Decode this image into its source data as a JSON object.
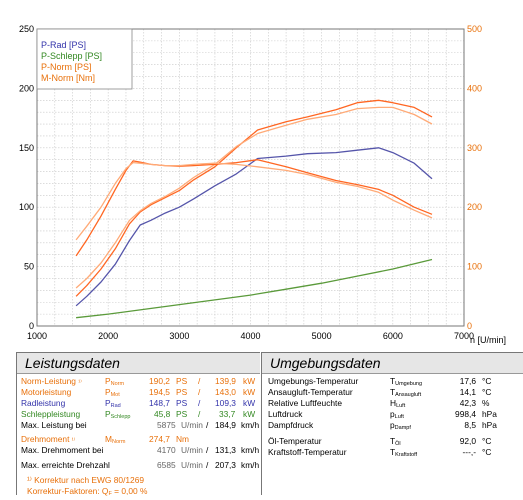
{
  "chart_data": {
    "type": "line",
    "xlabel": "n [U/min]",
    "xlim": [
      1000,
      7000
    ],
    "x_ticks": [
      1000,
      2000,
      3000,
      4000,
      5000,
      6000,
      7000
    ],
    "ylim_left": [
      0,
      250
    ],
    "y_ticks_left": [
      0,
      50,
      100,
      150,
      200,
      250
    ],
    "ylim_right": [
      0,
      500
    ],
    "y_ticks_right": [
      0,
      100,
      200,
      300,
      400,
      500
    ],
    "grid": true,
    "legend_position": "top-left",
    "legend": [
      "P-Rad [PS]",
      "P-Schlepp [PS]",
      "P-Norm [PS]",
      "M-Norm [Nm]"
    ],
    "series": [
      {
        "name": "P-Rad [PS]",
        "axis": "left",
        "color": "#5555aa",
        "x": [
          1550,
          1700,
          1900,
          2100,
          2300,
          2450,
          2600,
          2800,
          3000,
          3200,
          3500,
          3800,
          4100,
          4500,
          4800,
          5200,
          5500,
          5800,
          6000,
          6300,
          6550
        ],
        "y": [
          17,
          25,
          37,
          52,
          72,
          85,
          89,
          95,
          100,
          107,
          118,
          128,
          141,
          143,
          145,
          146,
          148,
          150,
          146,
          137,
          124
        ]
      },
      {
        "name": "P-Schlepp [PS]",
        "axis": "left",
        "color": "#5a9a3a",
        "x": [
          1550,
          2000,
          2500,
          3000,
          3500,
          4000,
          4500,
          5000,
          5500,
          6000,
          6550
        ],
        "y": [
          7,
          10,
          14,
          18,
          22,
          26,
          31,
          36,
          42,
          48,
          56
        ]
      },
      {
        "name": "P-Norm [PS]",
        "axis": "left",
        "color": "#ff6622",
        "x": [
          1550,
          1700,
          1900,
          2100,
          2300,
          2450,
          2600,
          2800,
          3000,
          3200,
          3500,
          3800,
          4100,
          4500,
          4800,
          5200,
          5500,
          5800,
          6000,
          6300,
          6550
        ],
        "y": [
          25,
          34,
          48,
          65,
          86,
          96,
          102,
          108,
          114,
          123,
          134,
          150,
          165,
          172,
          176,
          182,
          188,
          190,
          188,
          184,
          176
        ]
      },
      {
        "name": "P-Norm [PS]",
        "axis": "left",
        "color": "#ffaa77",
        "x": [
          1550,
          1700,
          1900,
          2100,
          2300,
          2450,
          2600,
          2800,
          3000,
          3200,
          3500,
          3800,
          4100,
          4500,
          4800,
          5200,
          5500,
          5800,
          6000,
          6300,
          6550
        ],
        "y": [
          32,
          40,
          53,
          70,
          89,
          97,
          103,
          109,
          116,
          125,
          136,
          151,
          162,
          169,
          174,
          178,
          183,
          184,
          184,
          178,
          170
        ]
      },
      {
        "name": "M-Norm [Nm]",
        "axis": "right",
        "color": "#ff6622",
        "x": [
          1550,
          1700,
          1900,
          2100,
          2250,
          2350,
          2450,
          2600,
          2800,
          3000,
          3200,
          3500,
          3800,
          4100,
          4500,
          4800,
          5200,
          5500,
          5800,
          6000,
          6300,
          6550
        ],
        "y": [
          118,
          145,
          185,
          230,
          262,
          278,
          276,
          272,
          270,
          269,
          270,
          272,
          275,
          280,
          268,
          258,
          245,
          238,
          230,
          220,
          200,
          188
        ]
      },
      {
        "name": "M-Norm [Nm]",
        "axis": "right",
        "color": "#ffaa77",
        "x": [
          1550,
          1700,
          1900,
          2100,
          2250,
          2350,
          2450,
          2600,
          2800,
          3000,
          3200,
          3500,
          3800,
          4100,
          4500,
          4800,
          5200,
          5500,
          5800,
          6000,
          6300,
          6550
        ],
        "y": [
          145,
          168,
          200,
          240,
          265,
          275,
          274,
          272,
          270,
          270,
          272,
          274,
          272,
          268,
          262,
          255,
          242,
          235,
          225,
          212,
          195,
          182
        ]
      }
    ]
  },
  "leistung": {
    "title": "Leistungsdaten",
    "norm": {
      "label": "Norm-Leistung",
      "mark": "¹⁾",
      "sym": "P",
      "sub": "Norm",
      "ps": "190,2",
      "ps_unit": "PS",
      "sep": "/",
      "kw": "139,9",
      "kw_unit": "kW"
    },
    "motor": {
      "label": "Motorleistung",
      "sym": "P",
      "sub": "Mot",
      "ps": "194,5",
      "ps_unit": "PS",
      "sep": "/",
      "kw": "143,0",
      "kw_unit": "kW"
    },
    "rad": {
      "label": "Radleistung",
      "sym": "P",
      "sub": "Rad",
      "ps": "148,7",
      "ps_unit": "PS",
      "sep": "/",
      "kw": "109,3",
      "kw_unit": "kW"
    },
    "schlepp": {
      "label": "Schleppleistung",
      "sym": "P",
      "sub": "Schlepp",
      "ps": "45,8",
      "ps_unit": "PS",
      "sep": "/",
      "kw": "33,7",
      "kw_unit": "kW"
    },
    "maxleistung": {
      "label": "Max. Leistung bei",
      "rpm": "5875",
      "rpm_unit": "U/min",
      "sep": "/",
      "speed": "184,9",
      "speed_unit": "km/h"
    },
    "drehmoment": {
      "label": "Drehmoment",
      "mark": "¹⁾",
      "sym": "M",
      "sub": "Norm",
      "value": "274,7",
      "unit": "Nm"
    },
    "maxdreh": {
      "label": "Max. Drehmoment bei",
      "rpm": "4170",
      "rpm_unit": "U/min",
      "sep": "/",
      "speed": "131,3",
      "speed_unit": "km/h"
    },
    "maxdrehzahl": {
      "label": "Max. erreichte Drehzahl",
      "rpm": "6585",
      "rpm_unit": "U/min",
      "sep": "/",
      "speed": "207,3",
      "speed_unit": "km/h"
    },
    "korrektur": "¹⁾ Korrektur nach EWG 80/1269",
    "faktor_label": "Korrektur-Faktoren: Q",
    "faktor_sub": "F",
    "faktor_value": "= 0,00 %"
  },
  "umgebung": {
    "title": "Umgebungsdaten",
    "rows": [
      {
        "label": "Umgebungs-Temperatur",
        "sym": "T",
        "sub": "Umgebung",
        "value": "17,6",
        "unit": "°C"
      },
      {
        "label": "Ansaugluft-Temperatur",
        "sym": "T",
        "sub": "Ansaugluft",
        "value": "14,1",
        "unit": "°C"
      },
      {
        "label": "Relative Luftfeuchte",
        "sym": "H",
        "sub": "Luft",
        "value": "42,3",
        "unit": "%"
      },
      {
        "label": "Luftdruck",
        "sym": "p",
        "sub": "Luft",
        "value": "998,4",
        "unit": "hPa"
      },
      {
        "label": "Dampfdruck",
        "sym": "p",
        "sub": "Dampf",
        "value": "8,5",
        "unit": "hPa"
      },
      {
        "label": "Öl-Temperatur",
        "sym": "T",
        "sub": "Öl",
        "value": "92,0",
        "unit": "°C"
      },
      {
        "label": "Kraftstoff-Temperatur",
        "sym": "T",
        "sub": "Kraftstoff",
        "value": "---,-",
        "unit": "°C"
      }
    ]
  }
}
